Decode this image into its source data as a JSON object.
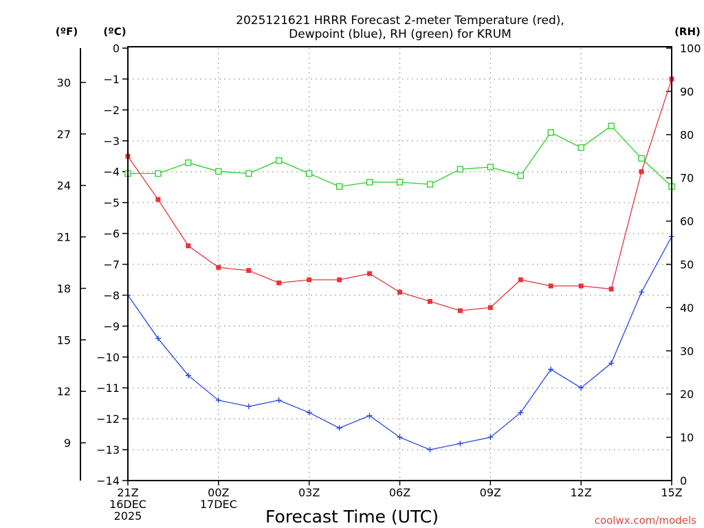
{
  "chart_data": {
    "type": "line",
    "title": [
      "2025121621 HRRR Forecast 2-meter Temperature (red),",
      "Dewpoint (blue), RH (green) for KRUM"
    ],
    "xlabel": "Forecast Time (UTC)",
    "credit": "coolwx.com/models",
    "units": {
      "fahrenheit": "(ºF)",
      "celsius": "(ºC)",
      "rh": "(RH)"
    },
    "x": [
      0,
      1,
      2,
      3,
      4,
      5,
      6,
      7,
      8,
      9,
      10,
      11,
      12,
      13,
      14,
      15,
      16,
      17,
      18
    ],
    "x_ticks": [
      {
        "x": 0,
        "lines": [
          "21Z",
          "16DEC",
          "2025"
        ]
      },
      {
        "x": 3,
        "lines": [
          "00Z",
          "17DEC"
        ]
      },
      {
        "x": 6,
        "lines": [
          "03Z"
        ]
      },
      {
        "x": 9,
        "lines": [
          "06Z"
        ]
      },
      {
        "x": 12,
        "lines": [
          "09Z"
        ]
      },
      {
        "x": 15,
        "lines": [
          "12Z"
        ]
      },
      {
        "x": 18,
        "lines": [
          "15Z"
        ]
      }
    ],
    "ylim_celsius": [
      -14,
      0
    ],
    "ylim_rh": [
      0,
      100
    ],
    "celsius_ticks": [
      0,
      -1,
      -2,
      -3,
      -4,
      -5,
      -6,
      -7,
      -8,
      -9,
      -10,
      -11,
      -12,
      -13,
      -14
    ],
    "fahrenheit_ticks": [
      30,
      27,
      24,
      21,
      18,
      15,
      12,
      9
    ],
    "rh_ticks": [
      100,
      90,
      80,
      70,
      60,
      50,
      40,
      30,
      20,
      10,
      0
    ],
    "grid": true,
    "series": [
      {
        "name": "Temperature",
        "axis": "celsius",
        "color": "#e8333a",
        "marker": "filled-square",
        "values": [
          -3.5,
          -4.9,
          -6.4,
          -7.1,
          -7.2,
          -7.6,
          -7.5,
          -7.5,
          -7.3,
          -7.9,
          -8.2,
          -8.5,
          -8.4,
          -7.5,
          -7.7,
          -7.7,
          -7.8,
          -4.0,
          -1.0
        ]
      },
      {
        "name": "Dewpoint",
        "axis": "celsius",
        "color": "#2846e6",
        "marker": "plus",
        "values": [
          -8.0,
          -9.4,
          -10.6,
          -11.4,
          -11.6,
          -11.4,
          -11.8,
          -12.3,
          -11.9,
          -12.6,
          -13.0,
          -12.8,
          -12.6,
          -11.8,
          -10.4,
          -11.0,
          -10.2,
          -7.9,
          -6.1
        ]
      },
      {
        "name": "RH",
        "axis": "rh",
        "color": "#22d022",
        "marker": "open-square",
        "values": [
          71,
          71,
          73.5,
          71.5,
          71,
          74,
          71,
          68,
          69,
          69,
          68.5,
          72,
          72.5,
          70.5,
          80.5,
          77,
          82,
          74.5,
          68
        ]
      }
    ]
  }
}
